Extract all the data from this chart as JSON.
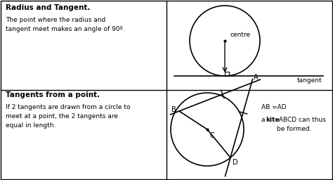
{
  "bg_color": "#ffffff",
  "border_color": "#000000",
  "text_color": "#000000",
  "top_left_title": "Radius and Tangent.",
  "top_left_body": "The point where the radius and\ntangent meet makes an angle of 90º.",
  "bottom_left_title": "Tangents from a point.",
  "bottom_left_body": "If 2 tangents are drawn from a circle to\nmeet at a point, the 2 tangents are\nequal in length.",
  "centre_label": "centre",
  "tangent_label": "tangent",
  "eq_label": "AB =AD",
  "kite_text1": "a ",
  "kite_text2": "kite",
  "kite_text3": " ABCD can thus\nbe formed."
}
